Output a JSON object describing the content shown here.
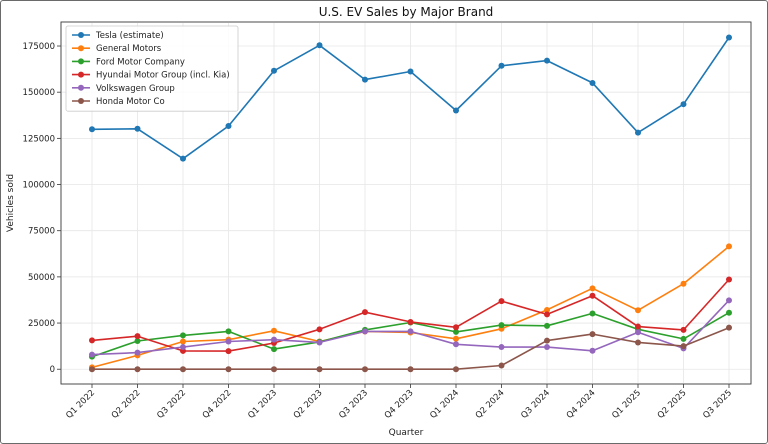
{
  "chart_data": {
    "type": "line",
    "title": "U.S. EV Sales by Major Brand",
    "xlabel": "Quarter",
    "ylabel": "Vehicles sold",
    "categories": [
      "Q1 2022",
      "Q2 2022",
      "Q3 2022",
      "Q4 2022",
      "Q1 2023",
      "Q2 2023",
      "Q3 2023",
      "Q4 2023",
      "Q1 2024",
      "Q2 2024",
      "Q3 2024",
      "Q4 2024",
      "Q1 2025",
      "Q2 2025",
      "Q3 2025"
    ],
    "yticks": [
      0,
      25000,
      50000,
      75000,
      100000,
      125000,
      150000,
      175000
    ],
    "ytick_labels": [
      "0",
      "25000",
      "50000",
      "75000",
      "100000",
      "125000",
      "150000",
      "175000"
    ],
    "ylim": [
      -8000,
      188000
    ],
    "grid": true,
    "legend_position": "top-left",
    "series": [
      {
        "name": "Tesla (estimate)",
        "color": "#1f77b4",
        "values": [
          129900,
          130200,
          114000,
          131700,
          161600,
          175400,
          156800,
          161200,
          140100,
          164300,
          167100,
          155000,
          128100,
          143500,
          179600
        ]
      },
      {
        "name": "General Motors",
        "color": "#ff7f0e",
        "values": [
          1000,
          7500,
          15000,
          16000,
          20800,
          15000,
          20400,
          19900,
          16500,
          21900,
          32100,
          43800,
          31900,
          46300,
          66500
        ]
      },
      {
        "name": "Ford Motor Company",
        "color": "#2ca02c",
        "values": [
          6800,
          15300,
          18300,
          20500,
          10900,
          14800,
          21300,
          25300,
          20200,
          23900,
          23500,
          30200,
          21600,
          16400,
          30600
        ]
      },
      {
        "name": "Hyundai Motor Group (incl. Kia)",
        "color": "#d62728",
        "values": [
          15600,
          17900,
          9900,
          9800,
          14200,
          21600,
          30900,
          25600,
          22700,
          36900,
          29700,
          39800,
          23100,
          21300,
          48600
        ]
      },
      {
        "name": "Volkswagen Group",
        "color": "#9467bd",
        "values": [
          7900,
          9000,
          12000,
          15000,
          16000,
          14500,
          20500,
          20500,
          13500,
          12000,
          12000,
          10000,
          20000,
          11300,
          37300
        ]
      },
      {
        "name": "Honda Motor Co",
        "color": "#8c564b",
        "values": [
          0,
          0,
          0,
          0,
          0,
          0,
          0,
          0,
          0,
          2000,
          15500,
          19000,
          14500,
          12500,
          22500
        ]
      }
    ]
  }
}
